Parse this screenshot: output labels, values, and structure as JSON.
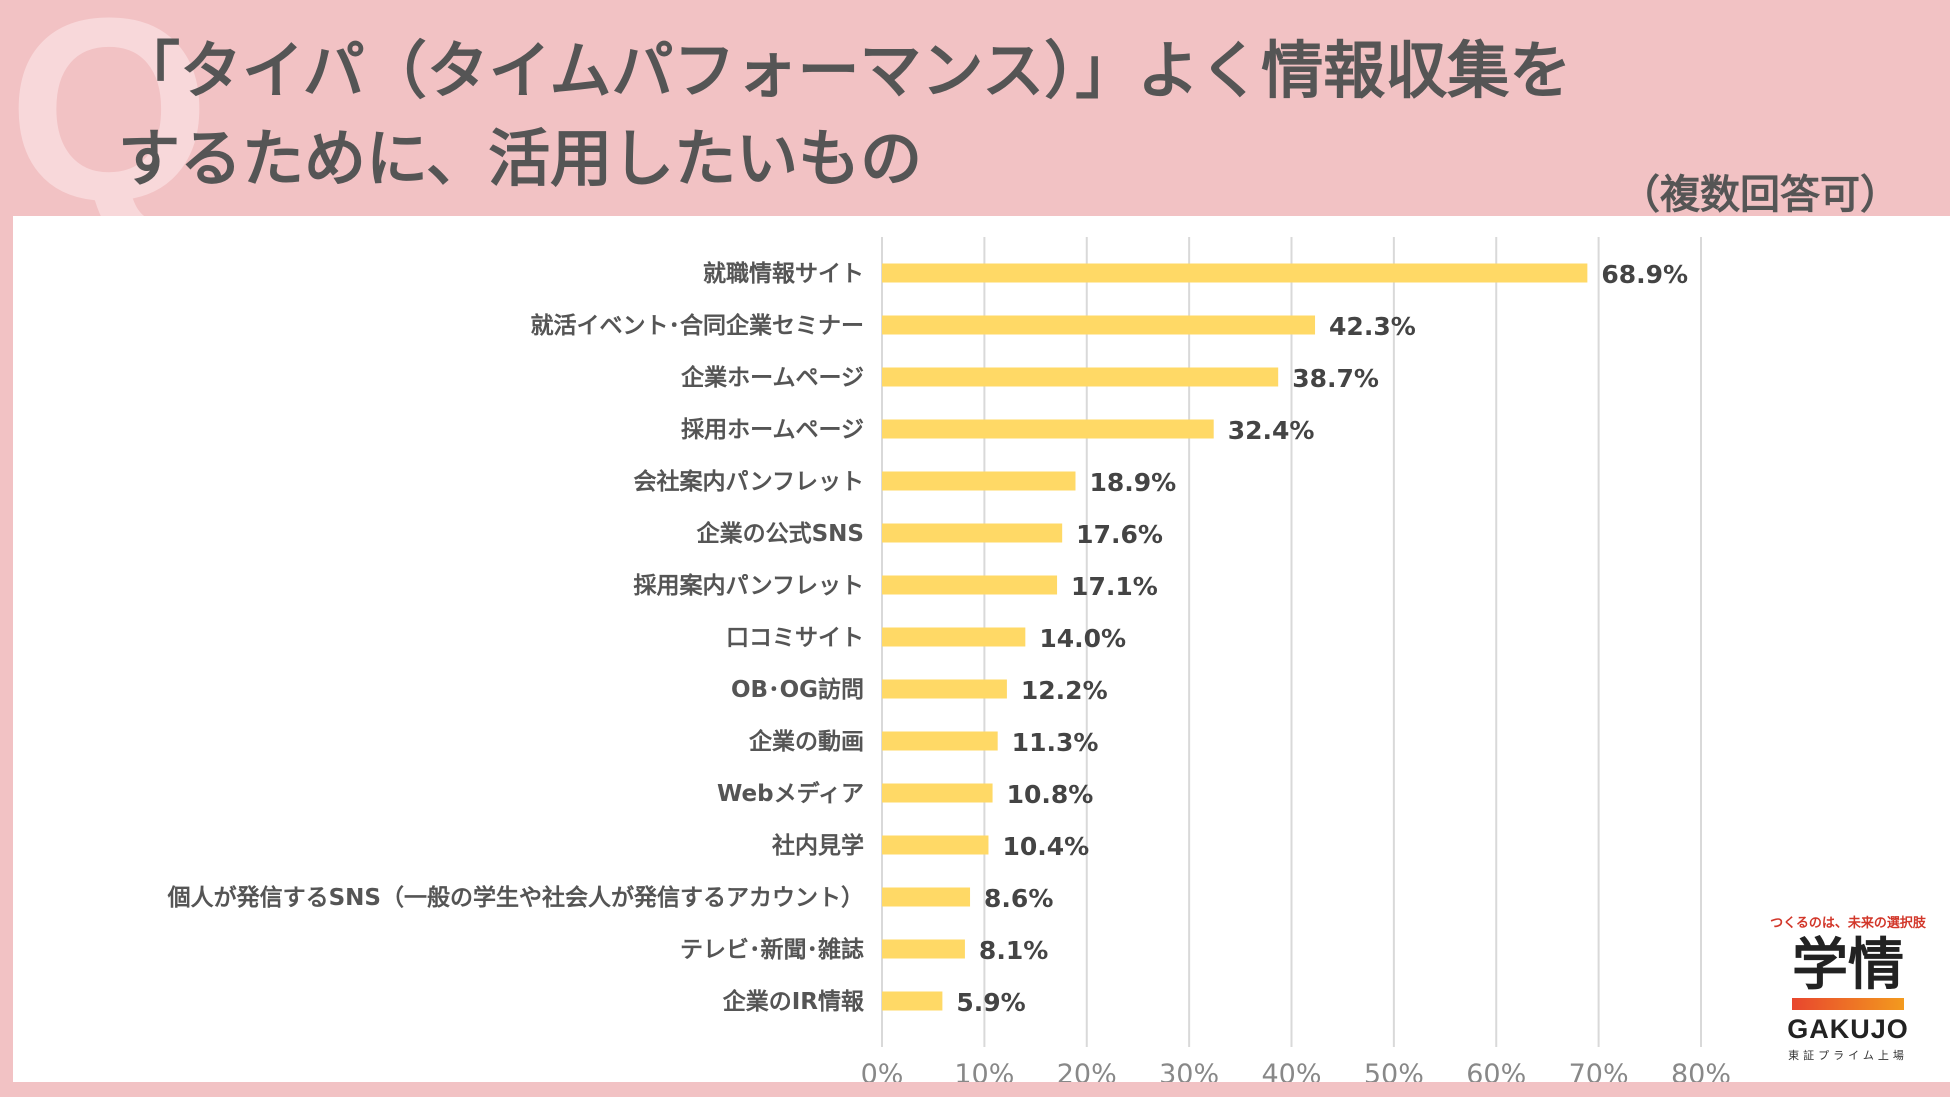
{
  "header": {
    "q_mark": "Q",
    "title_line1": "「タイパ（タイムパフォーマンス）」よく情報収集を",
    "title_line2": "するために、活用したいもの",
    "note": "（複数回答可）"
  },
  "colors": {
    "background": "#F2C2C4",
    "bar": "#FFD966",
    "grid": "#D9D9D9"
  },
  "chart_data": {
    "type": "bar",
    "orientation": "horizontal",
    "title": "「タイパ（タイムパフォーマンス）」よく情報収集をするために、活用したいもの",
    "categories": [
      "就職情報サイト",
      "就活イベント･合同企業セミナー",
      "企業ホームページ",
      "採用ホームページ",
      "会社案内パンフレット",
      "企業の公式SNS",
      "採用案内パンフレット",
      "口コミサイト",
      "OB･OG訪問",
      "企業の動画",
      "Webメディア",
      "社内見学",
      "個人が発信するSNS（一般の学生や社会人が発信するアカウント）",
      "テレビ･新聞･雑誌",
      "企業のIR情報"
    ],
    "values": [
      68.9,
      42.3,
      38.7,
      32.4,
      18.9,
      17.6,
      17.1,
      14.0,
      12.2,
      11.3,
      10.8,
      10.4,
      8.6,
      8.1,
      5.9
    ],
    "value_labels": [
      "68.9%",
      "42.3%",
      "38.7%",
      "32.4%",
      "18.9%",
      "17.6%",
      "17.1%",
      "14.0%",
      "12.2%",
      "11.3%",
      "10.8%",
      "10.4%",
      "8.6%",
      "8.1%",
      "5.9%"
    ],
    "x_ticks": [
      "0%",
      "10%",
      "20%",
      "30%",
      "40%",
      "50%",
      "60%",
      "70%",
      "80%"
    ],
    "xlim": [
      0,
      80
    ],
    "grid": true,
    "legend": "none"
  },
  "logo": {
    "tagline": "つくるのは、未来の選択肢",
    "name": "学情",
    "roman": "GAKUJO",
    "sub": "東証プライム上場"
  }
}
